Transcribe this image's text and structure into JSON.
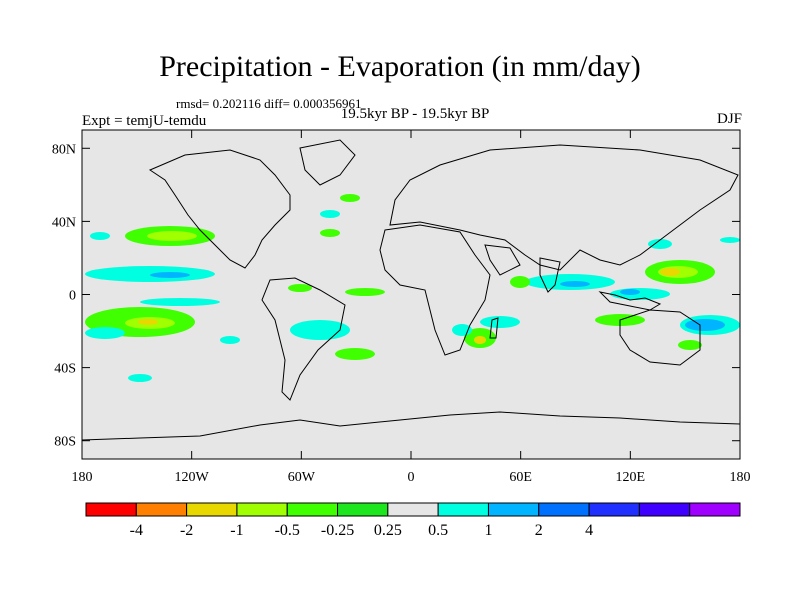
{
  "title": "Precipitation - Evaporation (in mm/day)",
  "stats": "rmsd= 0.202116 diff= 0.000356961",
  "expt": "Expt = temjU-temdu",
  "period": "19.5kyr BP - 19.5kyr BP",
  "season": "DJF",
  "lat_ticks": [
    {
      "label": "80N",
      "value": 80
    },
    {
      "label": "40N",
      "value": 40
    },
    {
      "label": "0",
      "value": 0
    },
    {
      "label": "40S",
      "value": -40
    },
    {
      "label": "80S",
      "value": -80
    }
  ],
  "lon_ticks": [
    {
      "label": "180",
      "value": -180
    },
    {
      "label": "120W",
      "value": -120
    },
    {
      "label": "60W",
      "value": -60
    },
    {
      "label": "0",
      "value": 0
    },
    {
      "label": "60E",
      "value": 60
    },
    {
      "label": "120E",
      "value": 120
    },
    {
      "label": "180",
      "value": 180
    }
  ],
  "colorbar": {
    "colors": [
      "#ff0000",
      "#ff8000",
      "#e8d800",
      "#a0ff00",
      "#40ff00",
      "#1ee61e",
      "#e6e6e6",
      "#00ffe0",
      "#00b4ff",
      "#0070ff",
      "#2030ff",
      "#4000ff",
      "#a000ff"
    ],
    "labels": [
      "-4",
      "-2",
      "-1",
      "-0.5",
      "-0.25",
      "0.25",
      "0.5",
      "1",
      "2",
      "4"
    ]
  },
  "colors": {
    "land_ocean": "#e6e6e6",
    "wet_weak": "#00ffe0",
    "wet_mid": "#00b4ff",
    "dry_weak": "#40ff00",
    "dry_mid": "#a0ff00",
    "dry_strong": "#e8d800"
  }
}
